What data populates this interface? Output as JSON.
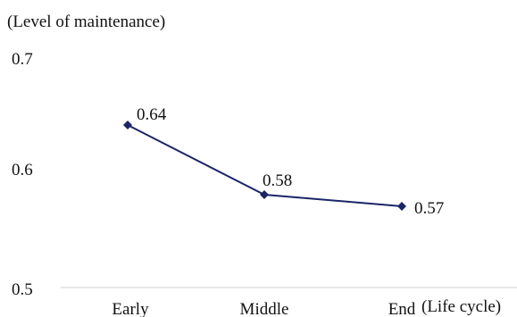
{
  "chart_data": {
    "type": "line",
    "ylabel": "(Level of maintenance)",
    "xlabel": "(Life cycle)",
    "categories": [
      "Early",
      "Middle",
      "End"
    ],
    "yticks": [
      "0.5",
      "0.6",
      "0.7"
    ],
    "ylim": [
      0.5,
      0.7
    ],
    "grid": false,
    "series": [
      {
        "values": [
          0.64,
          0.58,
          0.57
        ],
        "labels": [
          "0.64",
          "0.58",
          "0.57"
        ],
        "color": "#1b2566",
        "marker": "diamond"
      }
    ]
  },
  "colors": {
    "series": "#1b2566",
    "axis": "#d0d0d0",
    "text": "#111111"
  }
}
